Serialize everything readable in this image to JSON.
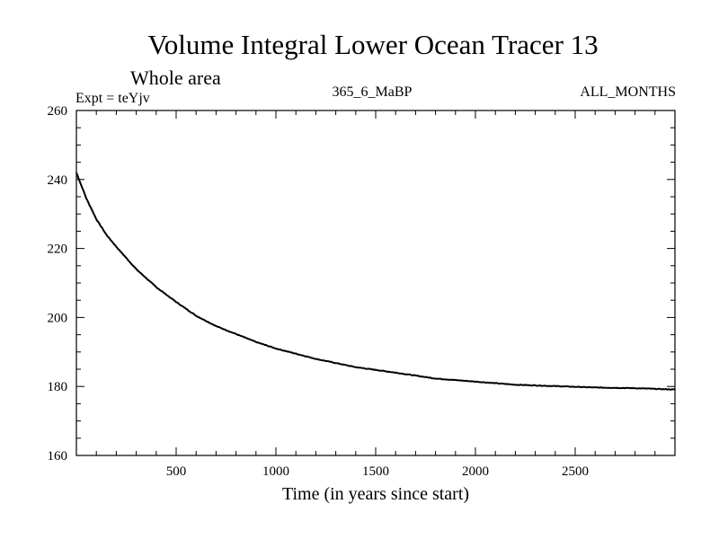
{
  "chart_data": {
    "type": "line",
    "title": "Volume Integral Lower Ocean Tracer 13",
    "subtitle": "Whole area",
    "expt_label": "Expt = teYjv",
    "center_label": "365_6_MaBP",
    "right_label": "ALL_MONTHS",
    "xlabel": "Time (in years since start)",
    "ylabel": "",
    "xlim": [
      0,
      3000
    ],
    "ylim": [
      160,
      260
    ],
    "x_ticks": [
      500,
      1000,
      1500,
      2000,
      2500
    ],
    "y_ticks": [
      160,
      180,
      200,
      220,
      240,
      260
    ],
    "x_minor_step": 100,
    "y_minor_step": 5,
    "grid": false,
    "series": [
      {
        "name": "Tracer 13",
        "x": [
          0,
          50,
          100,
          150,
          200,
          300,
          400,
          500,
          600,
          700,
          800,
          900,
          1000,
          1200,
          1400,
          1600,
          1800,
          2000,
          2200,
          2400,
          2600,
          2800,
          3000
        ],
        "y": [
          242,
          234.5,
          228.5,
          224,
          220.5,
          214,
          208.8,
          204.5,
          200.5,
          197.5,
          195.2,
          192.9,
          191,
          188,
          185.6,
          184,
          182.3,
          181.4,
          180.5,
          180.1,
          179.7,
          179.5,
          179.1
        ]
      }
    ]
  }
}
